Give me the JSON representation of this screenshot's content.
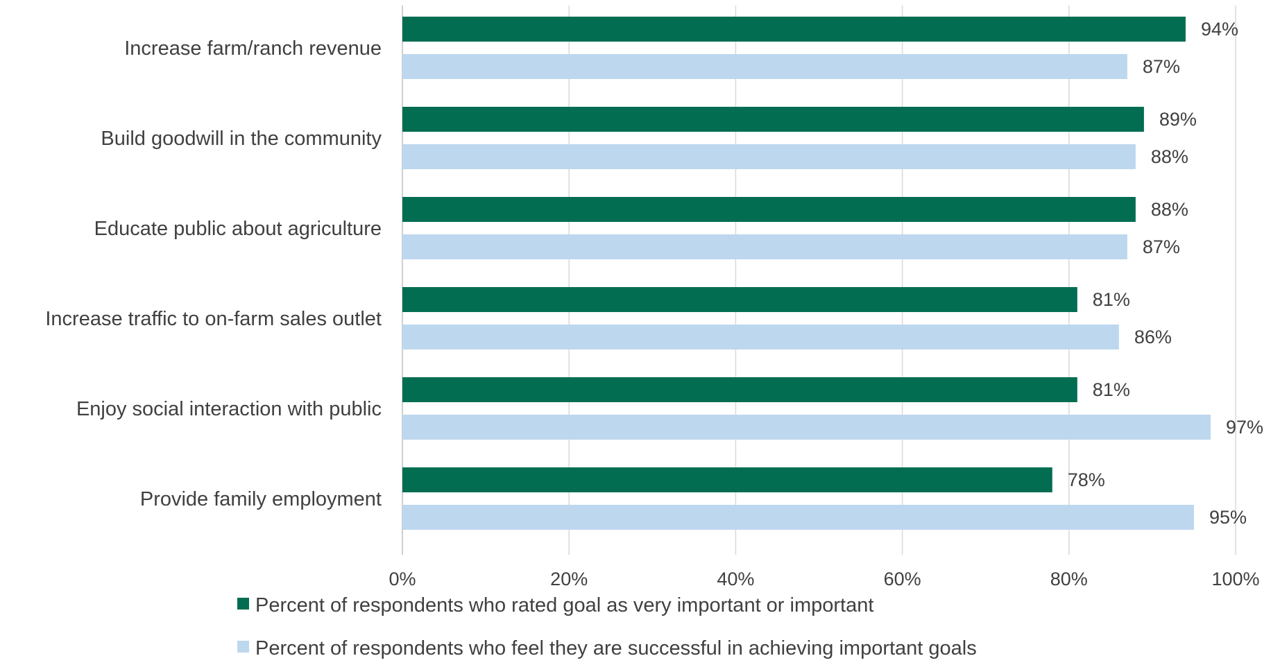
{
  "chart_data": {
    "type": "bar",
    "orientation": "horizontal",
    "title": "",
    "xlabel": "",
    "ylabel": "",
    "xlim": [
      0,
      100
    ],
    "categories": [
      "Increase farm/ranch revenue",
      "Build goodwill in the community",
      "Educate public about agriculture",
      "Increase traffic to on-farm sales outlet",
      "Enjoy social interaction with public",
      "Provide family employment"
    ],
    "series": [
      {
        "name": "Percent of respondents who rated goal as very important or important",
        "color": "#036D52",
        "values": [
          94,
          89,
          88,
          81,
          81,
          78
        ],
        "labels": [
          "94%",
          "89%",
          "88%",
          "81%",
          "81%",
          "78%"
        ]
      },
      {
        "name": "Percent of respondents who feel they are successful in achieving important goals",
        "color": "#BDD7EE",
        "values": [
          87,
          88,
          87,
          86,
          97,
          95
        ],
        "labels": [
          "87%",
          "88%",
          "87%",
          "86%",
          "97%",
          "95%"
        ]
      }
    ],
    "x_ticks": [
      0,
      20,
      40,
      60,
      80,
      100
    ],
    "x_tick_labels": [
      "0%",
      "20%",
      "40%",
      "60%",
      "80%",
      "100%"
    ],
    "grid": true,
    "legend_position": "bottom",
    "colors": {
      "gridline": "#D9D9D9",
      "text": "#404040"
    }
  }
}
